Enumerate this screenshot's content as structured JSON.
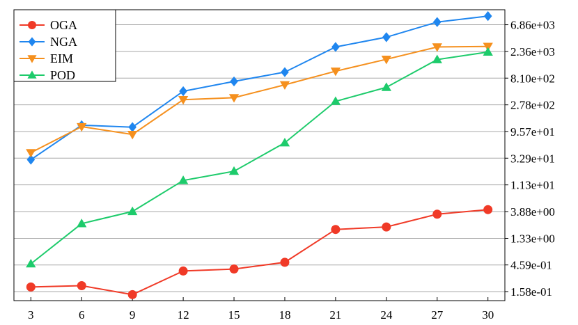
{
  "chart_data": {
    "type": "line",
    "x": [
      3,
      6,
      9,
      12,
      15,
      18,
      21,
      24,
      27,
      30
    ],
    "x_tick_labels": [
      "3",
      "6",
      "9",
      "12",
      "15",
      "18",
      "21",
      "24",
      "27",
      "30"
    ],
    "xlim": [
      2,
      31
    ],
    "y_scale": "log",
    "ylim": [
      0.11,
      12500
    ],
    "y_ticks": [
      0.158,
      0.459,
      1.33,
      3.88,
      11.3,
      32.9,
      95.7,
      278,
      810,
      2360,
      6860
    ],
    "y_tick_labels": [
      "1.58e-01",
      "4.59e-01",
      "1.33e+00",
      "3.88e+00",
      "1.13e+01",
      "3.29e+01",
      "9.57e+01",
      "2.78e+02",
      "8.10e+02",
      "2.36e+03",
      "6.86e+03"
    ],
    "y_axis_side": "right",
    "grid": "horizontal",
    "legend_position": "top-left",
    "series": [
      {
        "name": "OGA",
        "color": "#f03a27",
        "marker": "circle",
        "values": [
          0.19,
          0.2,
          0.14,
          0.36,
          0.39,
          0.51,
          1.9,
          2.1,
          3.5,
          4.2
        ]
      },
      {
        "name": "NGA",
        "color": "#1f86ef",
        "marker": "diamond",
        "values": [
          31,
          123,
          114,
          480,
          710,
          1030,
          2820,
          4170,
          7640,
          9700
        ]
      },
      {
        "name": "EIM",
        "color": "#f5901e",
        "marker": "triangle-down",
        "values": [
          41,
          116,
          85,
          342,
          370,
          620,
          1070,
          1720,
          2820,
          2880
        ]
      },
      {
        "name": "POD",
        "color": "#1dcb6b",
        "marker": "triangle-up",
        "values": [
          0.48,
          2.4,
          3.9,
          13.5,
          19.5,
          61,
          320,
          560,
          1700,
          2300
        ]
      }
    ]
  }
}
